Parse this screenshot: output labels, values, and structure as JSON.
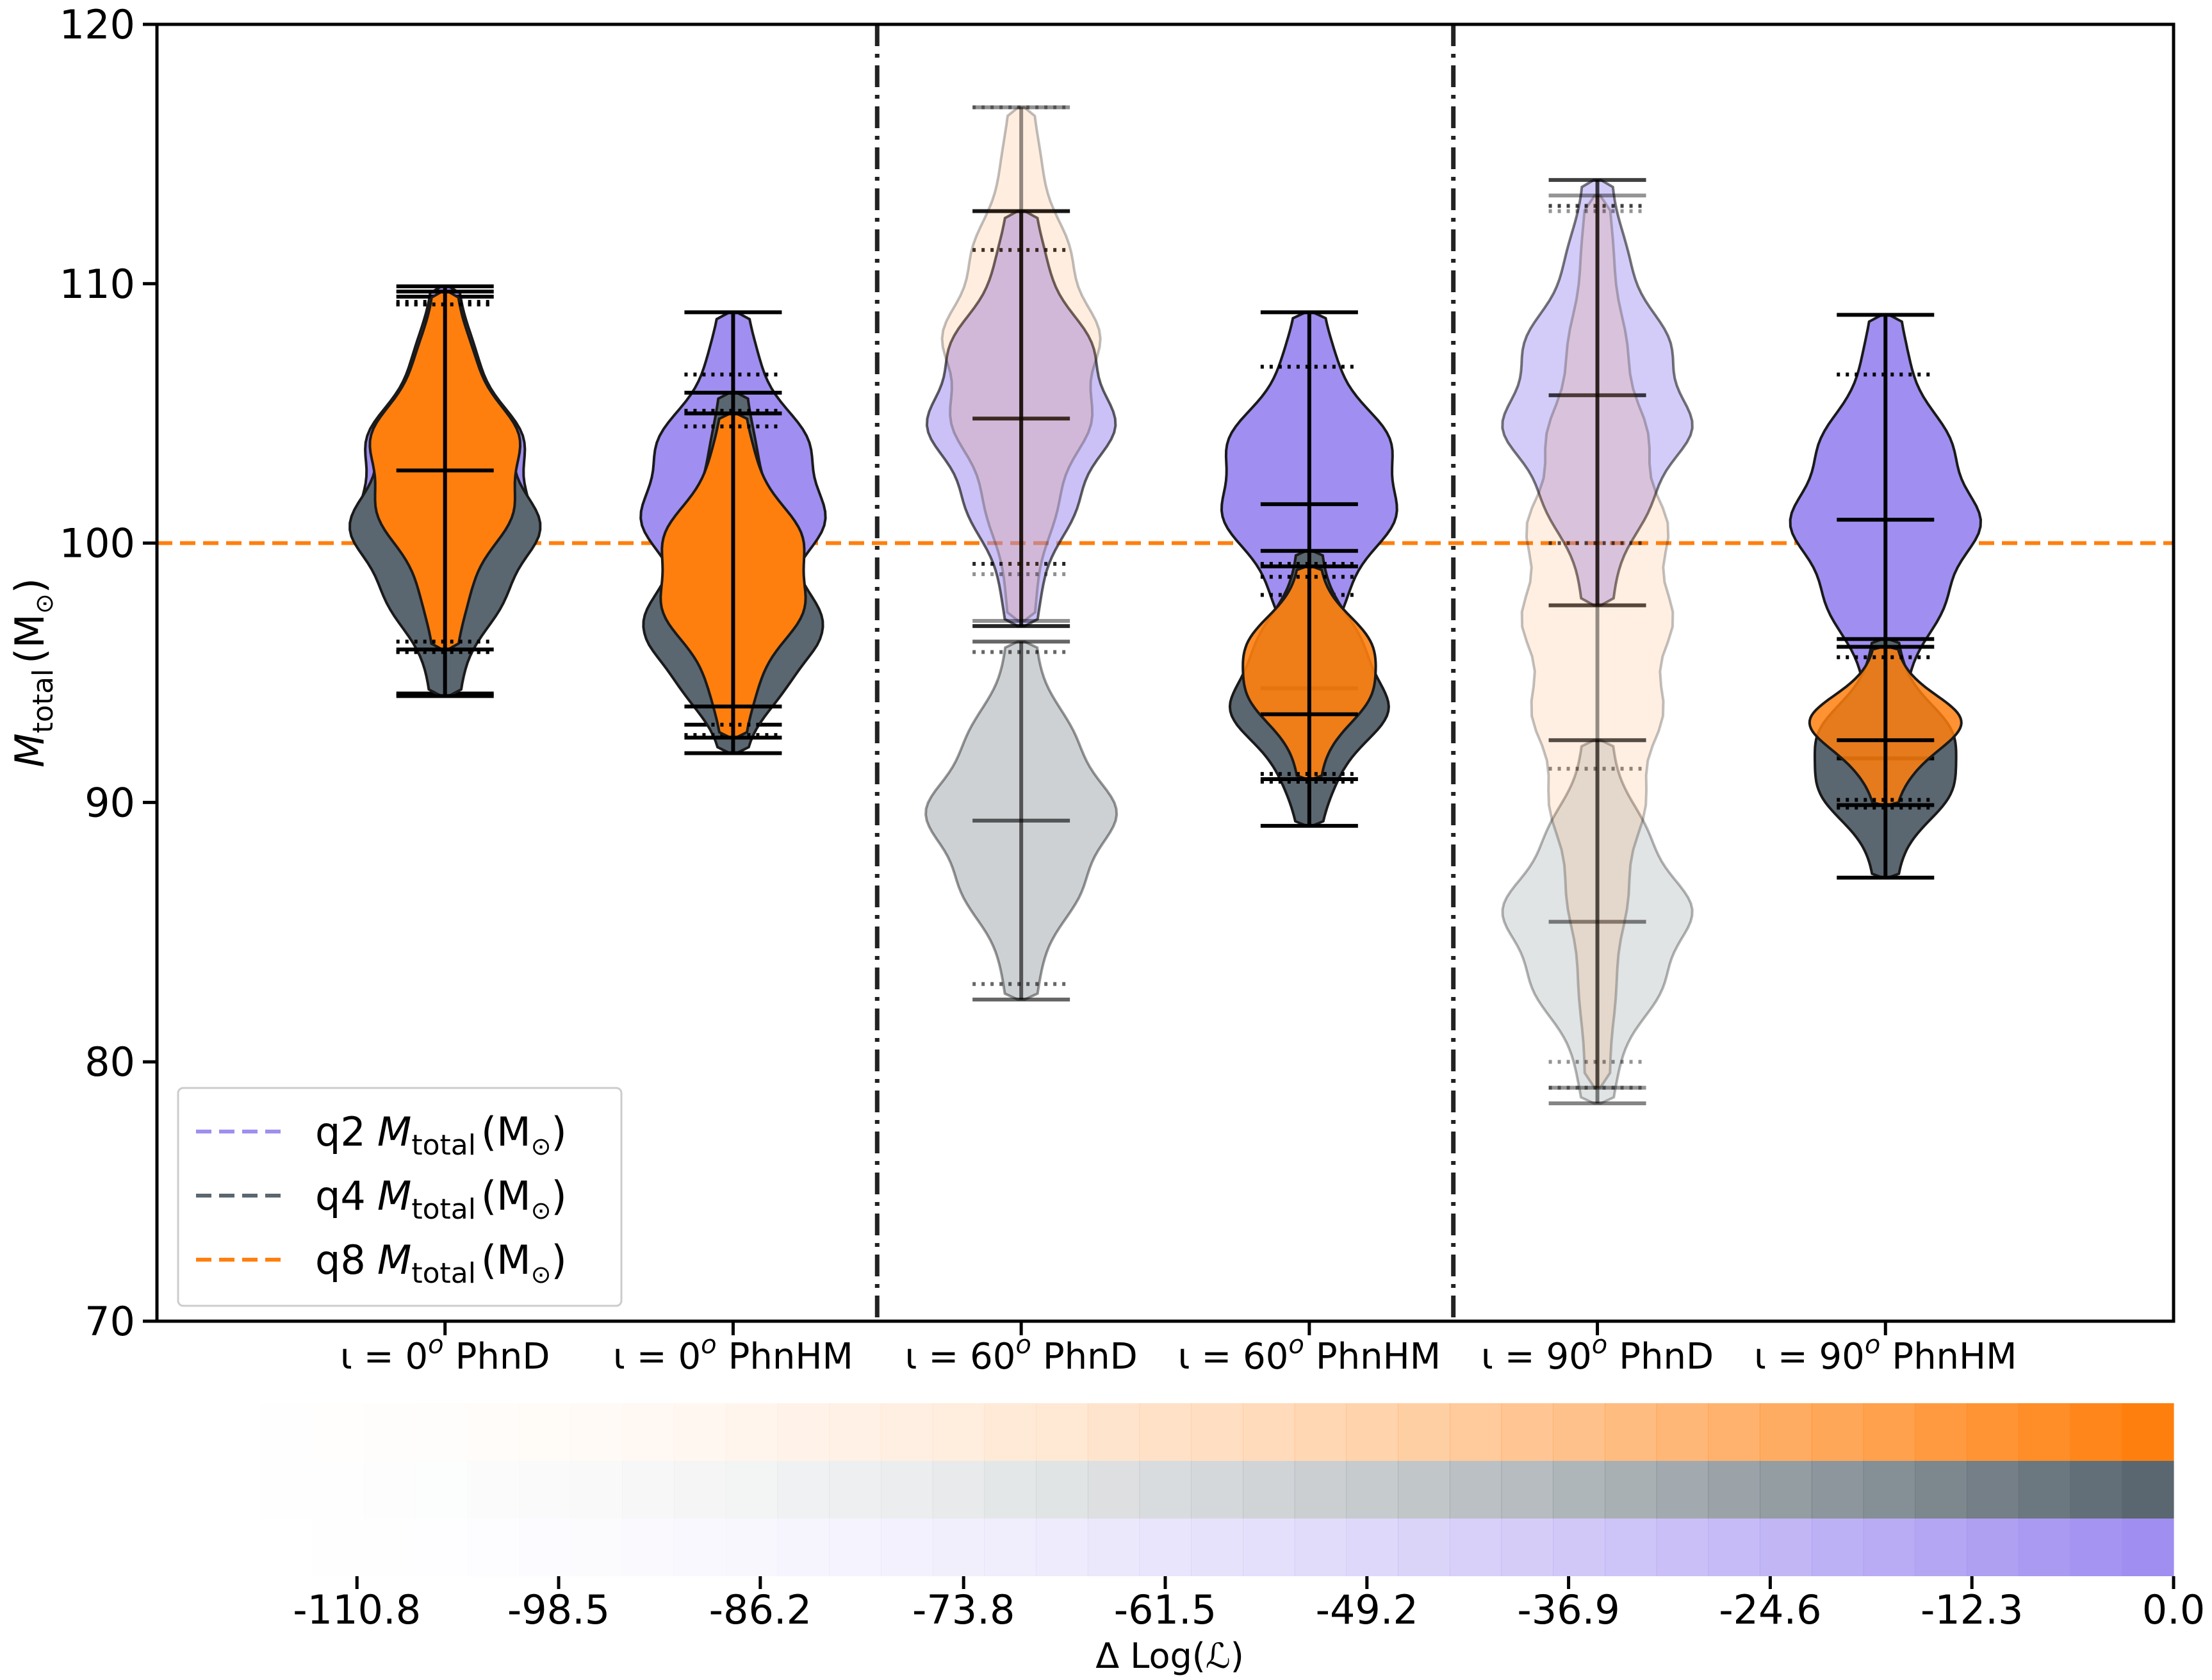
{
  "chart_data": {
    "type": "violin",
    "ylabel": {
      "symbol": "M",
      "sub": "total",
      "unit": "(M",
      "sun": "⊙",
      "close": ")"
    },
    "ylim": [
      70,
      120
    ],
    "yticks": [
      70,
      80,
      90,
      100,
      110,
      120
    ],
    "reference_line": {
      "value": 100,
      "color": "#ff7f0e",
      "style": "dashed"
    },
    "groups": [
      {
        "prefix": "ι = 0",
        "sup": "o",
        "suffix": "PhnD"
      },
      {
        "prefix": "ι = 0",
        "sup": "o",
        "suffix": "PhnHM"
      },
      {
        "prefix": "ι = 60",
        "sup": "o",
        "suffix": "PhnD"
      },
      {
        "prefix": "ι = 60",
        "sup": "o",
        "suffix": "PhnHM"
      },
      {
        "prefix": "ι = 90",
        "sup": "o",
        "suffix": "PhnD"
      },
      {
        "prefix": "ι = 90",
        "sup": "o",
        "suffix": "PhnHM"
      }
    ],
    "series": [
      {
        "name": "q2",
        "color": "#a08ef0",
        "violins": [
          {
            "min": 94.2,
            "max": 109.9,
            "median": 101.3,
            "q_low": 95.8,
            "q_high": 109.3,
            "mode": 102.3,
            "width": 0.19,
            "alpha": 1.0
          },
          {
            "min": 93.0,
            "max": 108.9,
            "median": 100.9,
            "q_low": 95.5,
            "q_high": 106.5,
            "mode": 101.9,
            "width": 0.2,
            "alpha": 1.0
          },
          {
            "min": 96.8,
            "max": 112.8,
            "median": 104.8,
            "q_low": 99.2,
            "q_high": 111.3,
            "mode": 105.1,
            "width": 0.2,
            "alpha": 0.55
          },
          {
            "min": 95.0,
            "max": 108.9,
            "median": 101.5,
            "q_low": 98.0,
            "q_high": 106.8,
            "mode": 102.4,
            "width": 0.2,
            "alpha": 1.0
          },
          {
            "min": 97.6,
            "max": 114.0,
            "median": 105.7,
            "q_low": 100.0,
            "q_high": 113.0,
            "mode": 104.8,
            "width": 0.2,
            "alpha": 0.45
          },
          {
            "min": 93.0,
            "max": 108.8,
            "median": 100.9,
            "q_low": 96.0,
            "q_high": 106.5,
            "mode": 101.0,
            "width": 0.2,
            "alpha": 1.0
          }
        ]
      },
      {
        "name": "q4",
        "color": "#5a6770",
        "violins": [
          {
            "min": 94.1,
            "max": 109.5,
            "median": 101.8,
            "q_low": 95.8,
            "q_high": 109.2,
            "mode": 100.4,
            "width": 0.2,
            "alpha": 1.0
          },
          {
            "min": 91.9,
            "max": 105.8,
            "median": 98.8,
            "q_low": 92.6,
            "q_high": 105.1,
            "mode": 96.3,
            "width": 0.19,
            "alpha": 1.0
          },
          {
            "min": 82.4,
            "max": 96.2,
            "median": 89.3,
            "q_low": 83.0,
            "q_high": 95.8,
            "mode": 89.5,
            "width": 0.2,
            "alpha": 0.3
          },
          {
            "min": 89.1,
            "max": 99.7,
            "median": 94.4,
            "q_low": 90.8,
            "q_high": 99.2,
            "mode": 94.0,
            "width": 0.17,
            "alpha": 1.0
          },
          {
            "min": 78.4,
            "max": 92.4,
            "median": 85.4,
            "q_low": 79.0,
            "q_high": 91.3,
            "mode": 85.5,
            "width": 0.2,
            "alpha": 0.18
          },
          {
            "min": 87.1,
            "max": 96.3,
            "median": 91.7,
            "q_low": 89.8,
            "q_high": 96.0,
            "mode": 91.5,
            "width": 0.17,
            "alpha": 1.0
          }
        ]
      },
      {
        "name": "q8",
        "color": "#ff7f0e",
        "violins": [
          {
            "min": 95.9,
            "max": 109.7,
            "median": 102.8,
            "q_low": 96.2,
            "q_high": 109.2,
            "mode": 102.9,
            "width": 0.17,
            "alpha": 1.0
          },
          {
            "min": 92.5,
            "max": 105.0,
            "median": 93.7,
            "q_low": 93.0,
            "q_high": 104.5,
            "mode": 98.8,
            "width": 0.17,
            "alpha": 1.0
          },
          {
            "min": 97.0,
            "max": 116.8,
            "median": 112.8,
            "q_low": 98.8,
            "q_high": 116.8,
            "mode": 107.0,
            "width": 0.17,
            "alpha": 0.13
          },
          {
            "min": 90.9,
            "max": 99.1,
            "median": 93.4,
            "q_low": 91.1,
            "q_high": 98.7,
            "mode": 95.2,
            "width": 0.16,
            "alpha": 0.9
          },
          {
            "min": 79.0,
            "max": 113.4,
            "median": 92.4,
            "q_low": 80.0,
            "q_high": 112.8,
            "mode": 98.0,
            "width": 0.16,
            "alpha": 0.12
          },
          {
            "min": 89.9,
            "max": 96.0,
            "median": 92.4,
            "q_low": 90.1,
            "q_high": 95.6,
            "mode": 93.0,
            "width": 0.16,
            "alpha": 0.85
          }
        ]
      }
    ],
    "legend": {
      "placement": "lower-left",
      "entries": [
        {
          "prefix": "q2",
          "symbol": "M",
          "sub": "total",
          "unit": "(M",
          "sun": "⊙",
          "close": ")",
          "color": "#a08ef0"
        },
        {
          "prefix": "q4",
          "symbol": "M",
          "sub": "total",
          "unit": "(M",
          "sun": "⊙",
          "close": ")",
          "color": "#5a6770"
        },
        {
          "prefix": "q8",
          "symbol": "M",
          "sub": "total",
          "unit": "(M",
          "sun": "⊙",
          "close": ")",
          "color": "#ff7f0e"
        }
      ]
    },
    "colorbar": {
      "label": "Δ Log(ℒ)",
      "range": [
        -123,
        0
      ],
      "ticks": [
        "-110.8",
        "-98.5",
        "-86.2",
        "-73.8",
        "-61.5",
        "-49.2",
        "-36.9",
        "-24.6",
        "-12.3",
        "0.0"
      ],
      "tick_values": [
        -110.8,
        -98.5,
        -86.2,
        -73.8,
        -61.5,
        -49.2,
        -36.9,
        -24.6,
        -12.3,
        0.0
      ],
      "cells": 39,
      "rows": [
        "#ff7f0e",
        "#5a6770",
        "#a08ef0"
      ]
    }
  }
}
